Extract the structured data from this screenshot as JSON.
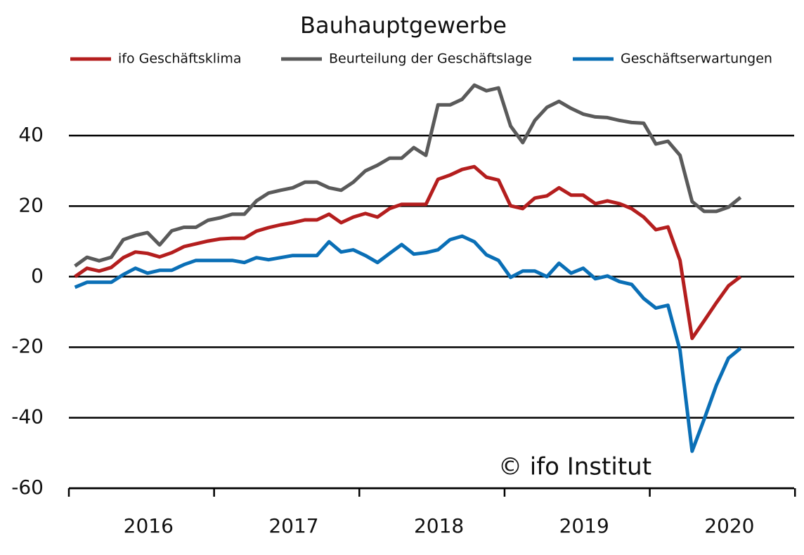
{
  "chart_data": {
    "type": "line",
    "title": "Bauhauptgewerbe",
    "annotation": "© ifo Institut",
    "categories": [
      null,
      null,
      null,
      null,
      null,
      null,
      null,
      null,
      null,
      null,
      null,
      null,
      null,
      null,
      null,
      null,
      null,
      null,
      null,
      null,
      null,
      null,
      null,
      null,
      null,
      null,
      null,
      null,
      null,
      null,
      null,
      null,
      null,
      null,
      null,
      null,
      null,
      null,
      null,
      null,
      null,
      null,
      null,
      null,
      null,
      null,
      null,
      null,
      null,
      null,
      null,
      null,
      null,
      null,
      null,
      null
    ],
    "year_labels": [
      "2016",
      "2017",
      "2018",
      "2019",
      "2020"
    ],
    "ylim": [
      -60,
      60
    ],
    "yticks": [
      -60,
      -40,
      -20,
      0,
      20,
      40
    ],
    "grid": true,
    "legend": "top",
    "series": [
      {
        "name": "ifo Geschäftsklima",
        "color": "#b41e1e",
        "values": [
          0,
          2.4,
          1.6,
          2.6,
          5.4,
          7,
          6.6,
          5.6,
          6.8,
          8.5,
          9.3,
          10.1,
          10.7,
          10.9,
          10.9,
          12.9,
          13.9,
          14.7,
          15.3,
          16.1,
          16.1,
          17.7,
          15.3,
          16.9,
          17.9,
          16.9,
          19.3,
          20.5,
          20.5,
          20.5,
          27.6,
          28.8,
          30.4,
          31.2,
          28.2,
          27.4,
          20.1,
          19.3,
          22.3,
          22.9,
          25.2,
          23.1,
          23.1,
          20.7,
          21.5,
          20.7,
          19.3,
          16.9,
          13.3,
          14.1,
          4.6,
          -17.5,
          -12.5,
          -7.4,
          -2.6,
          0
        ]
      },
      {
        "name": "Beurteilung der Geschäftslage",
        "color": "#5a5a5a",
        "values": [
          3,
          5.5,
          4.5,
          5.5,
          10.5,
          11.7,
          12.5,
          9,
          13,
          14,
          14,
          16,
          16.7,
          17.7,
          17.7,
          21.5,
          23.7,
          24.5,
          25.2,
          26.8,
          26.8,
          25.2,
          24.5,
          26.8,
          30,
          31.6,
          33.6,
          33.6,
          36.6,
          34.4,
          48.7,
          48.7,
          50.3,
          54.3,
          52.7,
          53.5,
          42.7,
          38,
          44.3,
          48,
          49.7,
          47.7,
          46.1,
          45.3,
          45.1,
          44.3,
          43.7,
          43.5,
          37.6,
          38.4,
          34.4,
          21.3,
          18.5,
          18.5,
          19.7,
          22.5
        ]
      },
      {
        "name": "Geschäftserwartungen",
        "color": "#0a6fb6",
        "values": [
          -3,
          -1.6,
          -1.6,
          -1.6,
          0.6,
          2.4,
          1,
          1.8,
          1.8,
          3.4,
          4.6,
          4.6,
          4.6,
          4.6,
          4,
          5.4,
          4.8,
          5.4,
          6,
          6,
          6,
          9.9,
          7,
          7.6,
          6,
          4,
          6.6,
          9.1,
          6.4,
          6.8,
          7.6,
          10.5,
          11.5,
          9.9,
          6.2,
          4.6,
          -0.2,
          1.6,
          1.6,
          0,
          3.8,
          1,
          2.4,
          -0.6,
          0.2,
          -1.4,
          -2.2,
          -6.2,
          -8.9,
          -8.1,
          -20.9,
          -49.5,
          -40.4,
          -30.8,
          -23.1,
          -20.3
        ]
      }
    ]
  }
}
